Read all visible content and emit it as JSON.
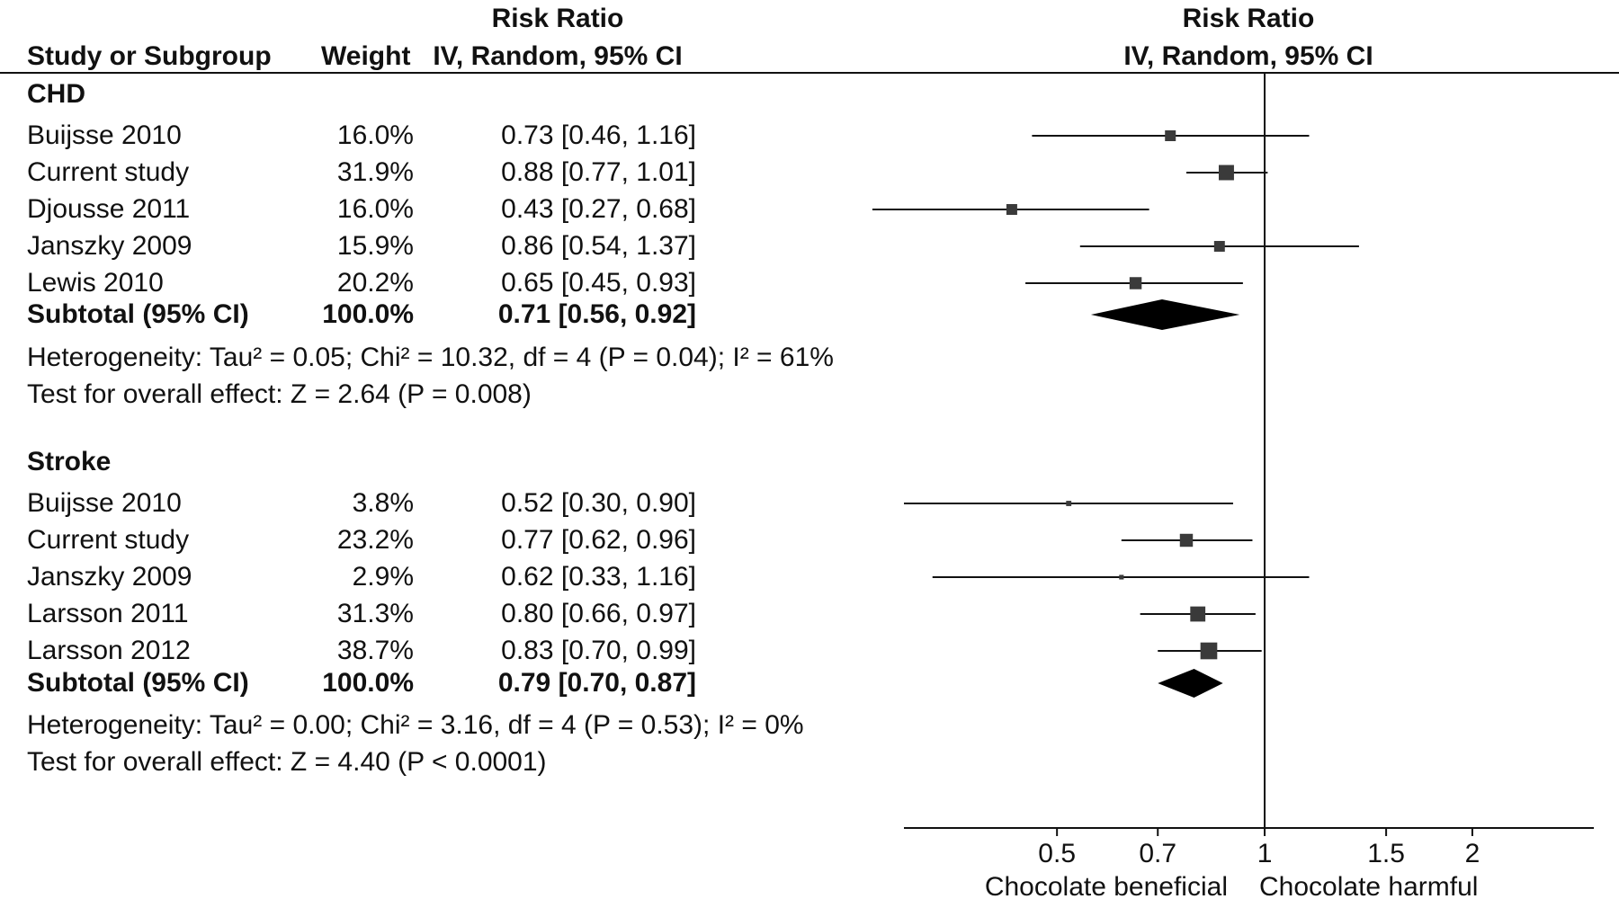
{
  "header": {
    "col_study": "Study or Subgroup",
    "col_weight": "Weight",
    "col_rr_top": "Risk Ratio",
    "col_rr_sub": "IV, Random, 95% CI",
    "plot_top": "Risk Ratio",
    "plot_sub": "IV, Random, 95% CI"
  },
  "chart_data": {
    "type": "forest",
    "xscale": "log",
    "xlim": [
      0.3,
      3.0
    ],
    "reference_line": 1,
    "x_ticks": [
      0.5,
      0.7,
      1,
      1.5,
      2
    ],
    "x_tick_labels": [
      "0.5",
      "0.7",
      "1",
      "1.5",
      "2"
    ],
    "label_left": "Chocolate beneficial",
    "label_right": "Chocolate harmful",
    "groups": [
      {
        "name": "CHD",
        "studies": [
          {
            "study": "Buijsse 2010",
            "weight": "16.0%",
            "ci_text": "0.73 [0.46, 1.16]",
            "rr": 0.73,
            "lo": 0.46,
            "hi": 1.16,
            "weight_value": 16.0
          },
          {
            "study": "Current study",
            "weight": "31.9%",
            "ci_text": "0.88 [0.77, 1.01]",
            "rr": 0.88,
            "lo": 0.77,
            "hi": 1.01,
            "weight_value": 31.9
          },
          {
            "study": "Djousse 2011",
            "weight": "16.0%",
            "ci_text": "0.43 [0.27, 0.68]",
            "rr": 0.43,
            "lo": 0.27,
            "hi": 0.68,
            "weight_value": 16.0
          },
          {
            "study": "Janszky 2009",
            "weight": "15.9%",
            "ci_text": "0.86 [0.54, 1.37]",
            "rr": 0.86,
            "lo": 0.54,
            "hi": 1.37,
            "weight_value": 15.9
          },
          {
            "study": "Lewis 2010",
            "weight": "20.2%",
            "ci_text": "0.65 [0.45, 0.93]",
            "rr": 0.65,
            "lo": 0.45,
            "hi": 0.93,
            "weight_value": 20.2
          }
        ],
        "subtotal": {
          "label": "Subtotal (95% CI)",
          "weight": "100.0%",
          "ci_text": "0.71 [0.56, 0.92]",
          "rr": 0.71,
          "lo": 0.56,
          "hi": 0.92
        },
        "heterogeneity": "Heterogeneity: Tau² = 0.05; Chi² = 10.32, df = 4 (P = 0.04); I² = 61%",
        "overall_effect": "Test for overall effect: Z = 2.64 (P = 0.008)"
      },
      {
        "name": "Stroke",
        "studies": [
          {
            "study": "Buijsse 2010",
            "weight": "3.8%",
            "ci_text": "0.52 [0.30, 0.90]",
            "rr": 0.52,
            "lo": 0.3,
            "hi": 0.9,
            "weight_value": 3.8
          },
          {
            "study": "Current study",
            "weight": "23.2%",
            "ci_text": "0.77 [0.62, 0.96]",
            "rr": 0.77,
            "lo": 0.62,
            "hi": 0.96,
            "weight_value": 23.2
          },
          {
            "study": "Janszky 2009",
            "weight": "2.9%",
            "ci_text": "0.62 [0.33, 1.16]",
            "rr": 0.62,
            "lo": 0.33,
            "hi": 1.16,
            "weight_value": 2.9
          },
          {
            "study": "Larsson 2011",
            "weight": "31.3%",
            "ci_text": "0.80 [0.66, 0.97]",
            "rr": 0.8,
            "lo": 0.66,
            "hi": 0.97,
            "weight_value": 31.3
          },
          {
            "study": "Larsson 2012",
            "weight": "38.7%",
            "ci_text": "0.83 [0.70, 0.99]",
            "rr": 0.83,
            "lo": 0.7,
            "hi": 0.99,
            "weight_value": 38.7
          }
        ],
        "subtotal": {
          "label": "Subtotal (95% CI)",
          "weight": "100.0%",
          "ci_text": "0.79 [0.70, 0.87]",
          "rr": 0.79,
          "lo": 0.7,
          "hi": 0.87
        },
        "heterogeneity": "Heterogeneity: Tau² = 0.00; Chi² = 3.16, df = 4 (P = 0.53); I² = 0%",
        "overall_effect": "Test for overall effect: Z = 4.40 (P < 0.0001)"
      }
    ]
  }
}
